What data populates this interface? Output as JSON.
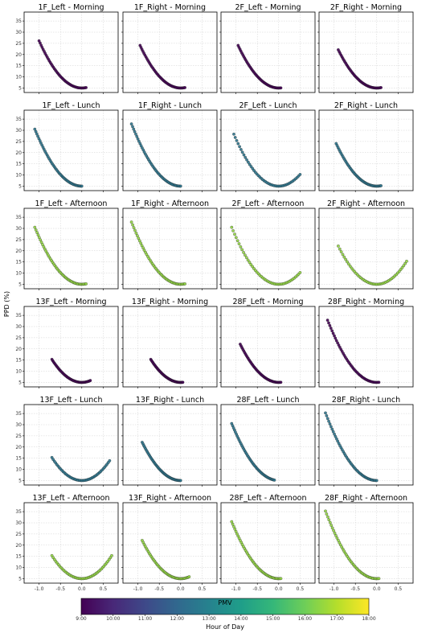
{
  "figure": {
    "ylabel": "PPD (%)",
    "xlabel_overlay": "PMV",
    "colorbar_label": "Hour of Day",
    "colorbar_ticks": [
      "9:00",
      "10:00",
      "11:00",
      "12:00",
      "13:00",
      "14:00",
      "15:00",
      "16:00",
      "17:00",
      "18:00"
    ],
    "x_ticks": [
      "-1.0",
      "-0.5",
      "0.0",
      "0.5"
    ],
    "y_ticks": [
      "5",
      "10",
      "15",
      "20",
      "25",
      "30",
      "35"
    ],
    "colormap": "viridis",
    "colormap_stops": [
      "#440154",
      "#482878",
      "#3e4989",
      "#31688e",
      "#26828e",
      "#1f9e89",
      "#35b779",
      "#6ece58",
      "#b5de2b",
      "#fde725"
    ]
  },
  "chart_data": {
    "type": "scatter",
    "xlim": [
      -1.35,
      0.85
    ],
    "ylim": [
      3,
      39
    ],
    "grid": true,
    "panels": [
      {
        "title": "1F_Left - Morning",
        "x_range": [
          -1.0,
          0.1
        ],
        "hour": "9:00"
      },
      {
        "title": "1F_Right - Morning",
        "x_range": [
          -0.95,
          0.1
        ],
        "hour": "9:00"
      },
      {
        "title": "2F_Left - Morning",
        "x_range": [
          -0.95,
          0.05
        ],
        "hour": "9:00"
      },
      {
        "title": "2F_Right - Morning",
        "x_range": [
          -0.9,
          0.1
        ],
        "hour": "9:00"
      },
      {
        "title": "1F_Left - Lunch",
        "x_range": [
          -1.1,
          0.0
        ],
        "hour": "12:30"
      },
      {
        "title": "1F_Right - Lunch",
        "x_range": [
          -1.15,
          0.0
        ],
        "hour": "12:30"
      },
      {
        "title": "2F_Left - Lunch",
        "x_range": [
          -1.05,
          0.5
        ],
        "hour": "12:30"
      },
      {
        "title": "2F_Right - Lunch",
        "x_range": [
          -0.95,
          0.1
        ],
        "hour": "12:30"
      },
      {
        "title": "1F_Left - Afternoon",
        "x_range": [
          -1.1,
          0.1
        ],
        "hour": "16:30"
      },
      {
        "title": "1F_Right - Afternoon",
        "x_range": [
          -1.15,
          0.1
        ],
        "hour": "16:30"
      },
      {
        "title": "2F_Left - Afternoon",
        "x_range": [
          -1.1,
          0.5
        ],
        "hour": "16:30"
      },
      {
        "title": "2F_Right - Afternoon",
        "x_range": [
          -0.9,
          0.7
        ],
        "hour": "16:30"
      },
      {
        "title": "13F_Left - Morning",
        "x_range": [
          -0.7,
          0.2
        ],
        "hour": "9:00"
      },
      {
        "title": "13F_Right - Morning",
        "x_range": [
          -0.7,
          0.05
        ],
        "hour": "9:00"
      },
      {
        "title": "28F_Left - Morning",
        "x_range": [
          -0.9,
          0.05
        ],
        "hour": "9:00"
      },
      {
        "title": "28F_Right - Morning",
        "x_range": [
          -1.15,
          0.05
        ],
        "hour": "9:00"
      },
      {
        "title": "13F_Left - Lunch",
        "x_range": [
          -0.7,
          0.65
        ],
        "hour": "12:30"
      },
      {
        "title": "13F_Right - Lunch",
        "x_range": [
          -0.9,
          0.0
        ],
        "hour": "12:30"
      },
      {
        "title": "28F_Left - Lunch",
        "x_range": [
          -1.1,
          -0.1
        ],
        "hour": "12:30"
      },
      {
        "title": "28F_Right - Lunch",
        "x_range": [
          -1.2,
          0.0
        ],
        "hour": "12:30"
      },
      {
        "title": "13F_Left - Afternoon",
        "x_range": [
          -0.7,
          0.7
        ],
        "hour": "16:30"
      },
      {
        "title": "13F_Right - Afternoon",
        "x_range": [
          -0.9,
          0.2
        ],
        "hour": "16:30"
      },
      {
        "title": "28F_Left - Afternoon",
        "x_range": [
          -1.1,
          0.05
        ],
        "hour": "16:30"
      },
      {
        "title": "28F_Right - Afternoon",
        "x_range": [
          -1.2,
          0.05
        ],
        "hour": "16:30"
      }
    ]
  }
}
